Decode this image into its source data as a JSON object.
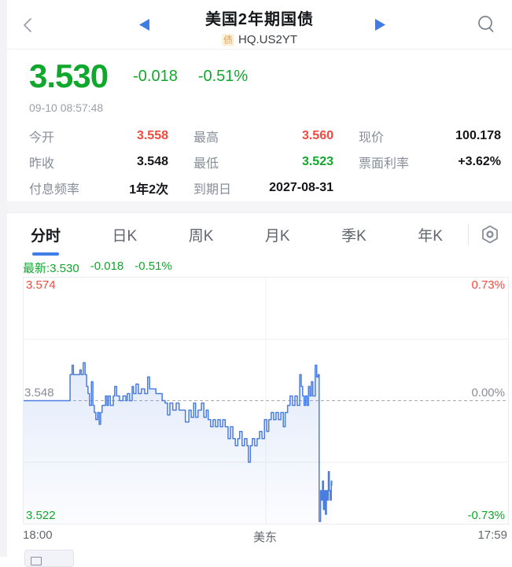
{
  "header": {
    "title": "美国2年期国债",
    "badge": "债",
    "code": "HQ.US2YT",
    "back_icon": "chevron-left",
    "prev_icon": "triangle-left",
    "next_icon": "triangle-right",
    "search_icon": "magnifier"
  },
  "quote": {
    "price": "3.530",
    "change": "-0.018",
    "change_pct": "-0.51%",
    "timestamp": "09-10 08:57:48"
  },
  "stats": {
    "rows": [
      [
        {
          "label": "今开",
          "value": "3.558",
          "color": "red"
        },
        {
          "label": "最高",
          "value": "3.560",
          "color": "red"
        },
        {
          "label": "现价",
          "value": "100.178",
          "color": "dark"
        }
      ],
      [
        {
          "label": "昨收",
          "value": "3.548",
          "color": "dark"
        },
        {
          "label": "最低",
          "value": "3.523",
          "color": "green"
        },
        {
          "label": "票面利率",
          "value": "+3.62%",
          "color": "dark"
        }
      ],
      [
        {
          "label": "付息频率",
          "value": "1年2次",
          "color": "dark"
        },
        {
          "label": "到期日",
          "value": "2027-08-31",
          "color": "dark"
        },
        null
      ]
    ]
  },
  "tabs": [
    {
      "label": "分时",
      "active": true
    },
    {
      "label": "日K",
      "active": false
    },
    {
      "label": "周K",
      "active": false
    },
    {
      "label": "月K",
      "active": false
    },
    {
      "label": "季K",
      "active": false
    },
    {
      "label": "年K",
      "active": false
    }
  ],
  "latest_bar": {
    "latest": "最新:3.530",
    "change": "-0.018",
    "change_pct": "-0.51%"
  },
  "colors": {
    "green": "#10a82c",
    "red": "#f5493d",
    "accent_blue": "#3e7ce4",
    "tab_underline": "#3d7eea"
  },
  "chart_data": {
    "type": "line",
    "title": "美国2年期国债 分时 (intraday yield)",
    "ylim": [
      3.522,
      3.574
    ],
    "prev_close": 3.548,
    "grid": true,
    "y_axis": {
      "top": {
        "text": "3.574",
        "pct": "0.73%"
      },
      "mid": {
        "text": "3.548",
        "pct": "0.00%"
      },
      "bottom": {
        "text": "3.522",
        "pct": "-0.73%"
      }
    },
    "x_labels": [
      "18:00",
      "美东",
      "17:59"
    ],
    "line_color": "#4a7de0",
    "fill_top": "rgba(74,125,224,0.16)",
    "fill_bottom": "rgba(74,125,224,0.02)",
    "dashed_color": "#a7abb3",
    "grid_color": "#f0f0f4",
    "points": [
      [
        0.0,
        3.548
      ],
      [
        0.094,
        3.548
      ],
      [
        0.096,
        3.5535
      ],
      [
        0.1,
        3.5555
      ],
      [
        0.103,
        3.5535
      ],
      [
        0.113,
        3.5535
      ],
      [
        0.116,
        3.5545
      ],
      [
        0.119,
        3.5535
      ],
      [
        0.123,
        3.556
      ],
      [
        0.127,
        3.5535
      ],
      [
        0.13,
        3.551
      ],
      [
        0.133,
        3.5495
      ],
      [
        0.136,
        3.547
      ],
      [
        0.14,
        3.552
      ],
      [
        0.143,
        3.547
      ],
      [
        0.146,
        3.5455
      ],
      [
        0.149,
        3.544
      ],
      [
        0.153,
        3.5455
      ],
      [
        0.156,
        3.543
      ],
      [
        0.159,
        3.5455
      ],
      [
        0.162,
        3.547
      ],
      [
        0.169,
        3.549
      ],
      [
        0.172,
        3.547
      ],
      [
        0.175,
        3.549
      ],
      [
        0.179,
        3.547
      ],
      [
        0.185,
        3.549
      ],
      [
        0.188,
        3.551
      ],
      [
        0.192,
        3.549
      ],
      [
        0.198,
        3.548
      ],
      [
        0.205,
        3.549
      ],
      [
        0.211,
        3.548
      ],
      [
        0.214,
        3.5495
      ],
      [
        0.219,
        3.548
      ],
      [
        0.224,
        3.551
      ],
      [
        0.227,
        3.5495
      ],
      [
        0.232,
        3.5515
      ],
      [
        0.237,
        3.5495
      ],
      [
        0.243,
        3.5505
      ],
      [
        0.25,
        3.5495
      ],
      [
        0.256,
        3.553
      ],
      [
        0.26,
        3.5505
      ],
      [
        0.266,
        3.5505
      ],
      [
        0.273,
        3.5495
      ],
      [
        0.279,
        3.5495
      ],
      [
        0.286,
        3.548
      ],
      [
        0.292,
        3.5475
      ],
      [
        0.297,
        3.545
      ],
      [
        0.302,
        3.5475
      ],
      [
        0.308,
        3.546
      ],
      [
        0.315,
        3.5475
      ],
      [
        0.321,
        3.546
      ],
      [
        0.328,
        3.546
      ],
      [
        0.334,
        3.5435
      ],
      [
        0.341,
        3.546
      ],
      [
        0.346,
        3.5445
      ],
      [
        0.351,
        3.5475
      ],
      [
        0.355,
        3.5445
      ],
      [
        0.36,
        3.546
      ],
      [
        0.367,
        3.5475
      ],
      [
        0.372,
        3.5445
      ],
      [
        0.377,
        3.546
      ],
      [
        0.381,
        3.544
      ],
      [
        0.386,
        3.5425
      ],
      [
        0.391,
        3.544
      ],
      [
        0.396,
        3.5425
      ],
      [
        0.401,
        3.544
      ],
      [
        0.406,
        3.5425
      ],
      [
        0.411,
        3.544
      ],
      [
        0.416,
        3.5425
      ],
      [
        0.422,
        3.54
      ],
      [
        0.427,
        3.5425
      ],
      [
        0.432,
        3.54
      ],
      [
        0.437,
        3.5385
      ],
      [
        0.442,
        3.54
      ],
      [
        0.446,
        3.5415
      ],
      [
        0.451,
        3.5385
      ],
      [
        0.456,
        3.54
      ],
      [
        0.461,
        3.5385
      ],
      [
        0.464,
        3.535
      ],
      [
        0.468,
        3.5385
      ],
      [
        0.472,
        3.54
      ],
      [
        0.477,
        3.5385
      ],
      [
        0.482,
        3.54
      ],
      [
        0.487,
        3.5415
      ],
      [
        0.492,
        3.54
      ],
      [
        0.497,
        3.544
      ],
      [
        0.502,
        3.5415
      ],
      [
        0.506,
        3.544
      ],
      [
        0.511,
        3.5455
      ],
      [
        0.516,
        3.544
      ],
      [
        0.521,
        3.5455
      ],
      [
        0.526,
        3.544
      ],
      [
        0.531,
        3.5455
      ],
      [
        0.536,
        3.5425
      ],
      [
        0.54,
        3.5455
      ],
      [
        0.545,
        3.547
      ],
      [
        0.55,
        3.549
      ],
      [
        0.555,
        3.547
      ],
      [
        0.56,
        3.549
      ],
      [
        0.565,
        3.547
      ],
      [
        0.57,
        3.5535
      ],
      [
        0.573,
        3.551
      ],
      [
        0.576,
        3.549
      ],
      [
        0.579,
        3.547
      ],
      [
        0.582,
        3.549
      ],
      [
        0.585,
        3.547
      ],
      [
        0.588,
        3.551
      ],
      [
        0.591,
        3.549
      ],
      [
        0.594,
        3.552
      ],
      [
        0.597,
        3.549
      ],
      [
        0.602,
        3.5555
      ],
      [
        0.605,
        3.553
      ],
      [
        0.608,
        3.5535
      ],
      [
        0.61,
        3.5225
      ],
      [
        0.613,
        3.529
      ],
      [
        0.615,
        3.527
      ],
      [
        0.617,
        3.531
      ],
      [
        0.619,
        3.525
      ],
      [
        0.621,
        3.529
      ],
      [
        0.623,
        3.524
      ],
      [
        0.625,
        3.529
      ],
      [
        0.627,
        3.527
      ],
      [
        0.629,
        3.533
      ],
      [
        0.631,
        3.529
      ],
      [
        0.633,
        3.527
      ],
      [
        0.635,
        3.531
      ],
      [
        0.636,
        3.53
      ]
    ]
  }
}
